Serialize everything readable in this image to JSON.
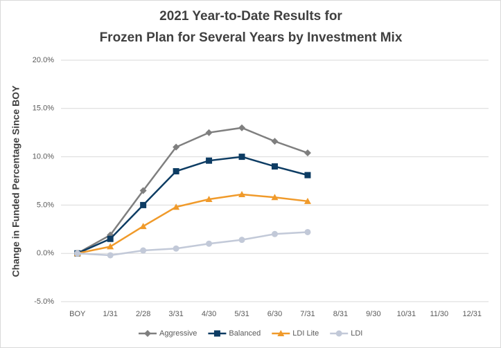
{
  "chart_data": {
    "type": "line",
    "title": [
      "2021 Year-to-Date Results for",
      "Frozen Plan for Several Years by Investment Mix"
    ],
    "y_label": "Change in Funded Percentage Since BOY",
    "categories": [
      "BOY",
      "1/31",
      "2/28",
      "3/31",
      "4/30",
      "5/31",
      "6/30",
      "7/31",
      "8/31",
      "9/30",
      "10/31",
      "11/30",
      "12/31"
    ],
    "series": [
      {
        "name": "Aggressive",
        "color": "#7f7f7f",
        "marker": "diamond",
        "values": [
          0,
          1.9,
          6.5,
          11.0,
          12.5,
          13.0,
          11.6,
          10.4,
          null,
          null,
          null,
          null,
          null
        ]
      },
      {
        "name": "Balanced",
        "color": "#0d3c63",
        "marker": "square",
        "values": [
          0,
          1.5,
          5.0,
          8.5,
          9.6,
          10.0,
          9.0,
          8.1,
          null,
          null,
          null,
          null,
          null
        ]
      },
      {
        "name": "LDI Lite",
        "color": "#f09a2a",
        "marker": "triangle",
        "values": [
          0,
          0.7,
          2.8,
          4.8,
          5.6,
          6.1,
          5.8,
          5.4,
          null,
          null,
          null,
          null,
          null
        ]
      },
      {
        "name": "LDI",
        "color": "#c2c9d8",
        "marker": "circle",
        "values": [
          0,
          -0.2,
          0.3,
          0.5,
          1.0,
          1.4,
          2.0,
          2.2,
          null,
          null,
          null,
          null,
          null
        ]
      }
    ],
    "ylim": [
      -5,
      20
    ],
    "yticks": [
      {
        "value": -5,
        "label": "-5.0%"
      },
      {
        "value": 0,
        "label": "0.0%"
      },
      {
        "value": 5,
        "label": "5.0%"
      },
      {
        "value": 10,
        "label": "10.0%"
      },
      {
        "value": 15,
        "label": "15.0%"
      },
      {
        "value": 20,
        "label": "20.0%"
      }
    ],
    "grid": true,
    "legend": "bottom"
  }
}
